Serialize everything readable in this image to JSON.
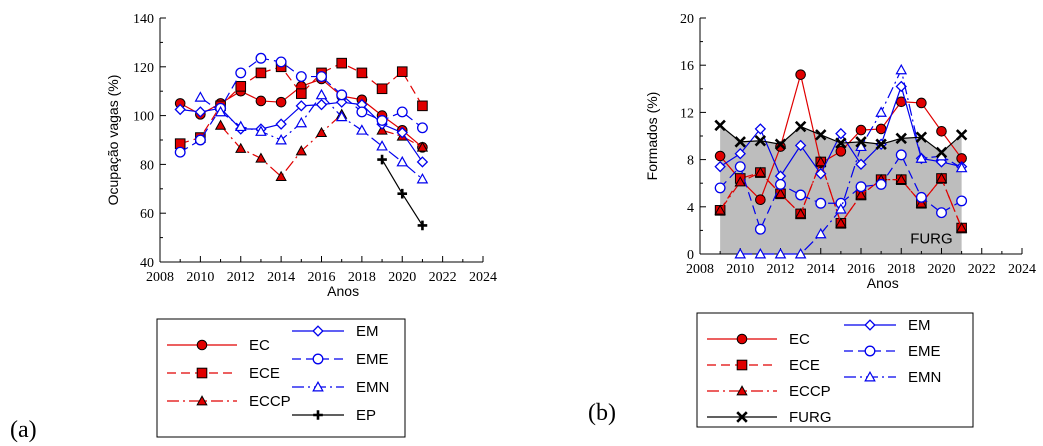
{
  "chart_data": [
    {
      "panel_label": "(a)",
      "type": "line",
      "xlabel": "Anos",
      "ylabel": "Ocupação vagas (%)",
      "xlim": [
        2008,
        2024
      ],
      "ylim": [
        40,
        140
      ],
      "xticks": [
        2008,
        2010,
        2012,
        2014,
        2016,
        2018,
        2020,
        2022,
        2024
      ],
      "yticks": [
        40,
        60,
        80,
        100,
        120,
        140
      ],
      "x": [
        2009,
        2010,
        2011,
        2012,
        2013,
        2014,
        2015,
        2016,
        2017,
        2018,
        2019,
        2020,
        2021
      ],
      "series": [
        {
          "name": "EC",
          "color": "#e00000",
          "marker": "circle",
          "dash": "solid",
          "values": [
            105,
            100.5,
            105,
            110,
            106,
            105.5,
            112,
            115,
            108,
            106.5,
            100,
            94,
            87
          ]
        },
        {
          "name": "ECE",
          "color": "#e00000",
          "marker": "square",
          "dash": "dashed",
          "values": [
            88.5,
            91,
            104,
            112,
            117.5,
            120,
            109,
            117.5,
            121.5,
            117.5,
            111,
            118,
            104
          ]
        },
        {
          "name": "ECCP",
          "color": "#e00000",
          "marker": "triangle",
          "dash": "dashdot",
          "values": [
            null,
            null,
            96,
            86.5,
            82.5,
            75,
            85.5,
            93,
            100.5,
            null,
            94,
            91.5,
            87
          ]
        },
        {
          "name": "EM",
          "color": "#0000ee",
          "marker": "diamond",
          "dash": "solid",
          "values": [
            102.5,
            101.5,
            103,
            94.5,
            94.5,
            96.5,
            104,
            104.5,
            105.5,
            104.5,
            96.5,
            93,
            81
          ]
        },
        {
          "name": "EME",
          "color": "#0000ee",
          "marker": "circle-open",
          "dash": "dashed",
          "values": [
            85,
            90,
            103,
            117.5,
            123.5,
            122,
            116,
            116,
            108.5,
            101.5,
            98,
            101.5,
            95
          ]
        },
        {
          "name": "EMN",
          "color": "#0000ee",
          "marker": "triangle-open",
          "dash": "dashdot",
          "values": [
            null,
            107.5,
            101.5,
            95.5,
            93.5,
            90,
            97,
            108.5,
            99.5,
            94,
            87.5,
            81,
            74
          ]
        },
        {
          "name": "EP",
          "color": "#000000",
          "marker": "plus",
          "dash": "solid",
          "values": [
            null,
            null,
            null,
            null,
            null,
            null,
            null,
            null,
            null,
            null,
            82,
            68,
            55
          ]
        }
      ],
      "legend": "bottom"
    },
    {
      "panel_label": "(b)",
      "type": "line",
      "xlabel": "Anos",
      "ylabel": "Formados (%)",
      "xlim": [
        2008,
        2024
      ],
      "ylim": [
        0,
        20
      ],
      "xticks": [
        2008,
        2010,
        2012,
        2014,
        2016,
        2018,
        2020,
        2022,
        2024
      ],
      "yticks": [
        0,
        4,
        8,
        12,
        16,
        20
      ],
      "annotation": "FURG",
      "x": [
        2009,
        2010,
        2011,
        2012,
        2013,
        2014,
        2015,
        2016,
        2017,
        2018,
        2019,
        2020,
        2021
      ],
      "series": [
        {
          "name": "EC",
          "color": "#e00000",
          "marker": "circle",
          "dash": "solid",
          "values": [
            8.3,
            6.3,
            4.6,
            9.1,
            15.2,
            7.7,
            8.7,
            10.5,
            10.6,
            12.9,
            12.8,
            10.4,
            8.1
          ]
        },
        {
          "name": "ECE",
          "color": "#e00000",
          "marker": "square",
          "dash": "dashed",
          "values": [
            3.7,
            6.4,
            6.9,
            5.1,
            3.4,
            7.8,
            2.6,
            5.0,
            6.3,
            6.3,
            4.3,
            6.4,
            2.2
          ]
        },
        {
          "name": "ECCP",
          "color": "#e00000",
          "marker": "triangle",
          "dash": "dashdot",
          "values": [
            3.7,
            6.1,
            6.9,
            5.1,
            3.4,
            7.8,
            2.6,
            5.0,
            6.3,
            6.3,
            4.3,
            6.4,
            2.2
          ]
        },
        {
          "name": "EM",
          "color": "#0000ee",
          "marker": "diamond",
          "dash": "solid",
          "values": [
            7.4,
            8.5,
            10.6,
            6.6,
            9.2,
            6.8,
            10.2,
            7.6,
            9.3,
            14.2,
            8.1,
            7.8,
            7.4
          ]
        },
        {
          "name": "EME",
          "color": "#0000ee",
          "marker": "circle-open",
          "dash": "dashed",
          "values": [
            5.6,
            7.4,
            2.1,
            5.9,
            5.0,
            4.3,
            4.3,
            5.7,
            5.9,
            8.4,
            4.8,
            3.5,
            4.5
          ]
        },
        {
          "name": "EMN",
          "color": "#0000ee",
          "marker": "triangle-open",
          "dash": "dashdot",
          "values": [
            null,
            0.0,
            0.0,
            0.0,
            0.0,
            1.7,
            3.8,
            9.1,
            12.0,
            15.6,
            8.1,
            8.3,
            7.3
          ]
        },
        {
          "name": "FURG",
          "color": "#000000",
          "marker": "x",
          "dash": "solid",
          "fill": "#bdbdbd",
          "values": [
            10.9,
            9.5,
            9.6,
            9.3,
            10.8,
            10.1,
            9.4,
            9.5,
            9.3,
            9.8,
            9.9,
            8.6,
            10.1
          ]
        }
      ],
      "legend": "bottom"
    }
  ]
}
